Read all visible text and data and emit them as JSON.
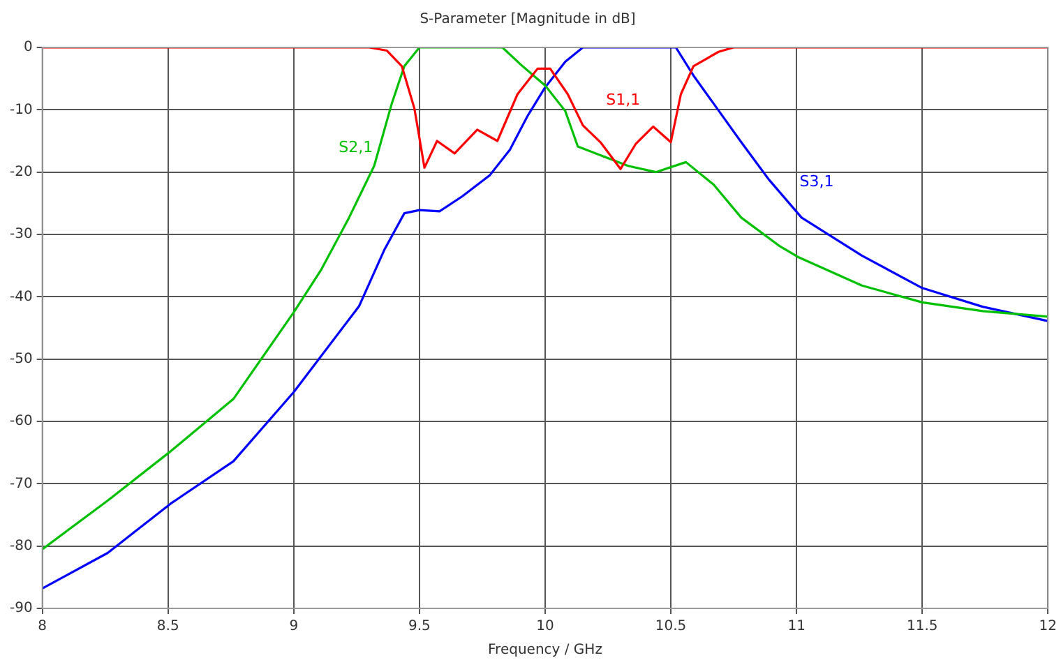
{
  "chart_data": {
    "type": "line",
    "title": "S-Parameter [Magnitude in dB]",
    "xlabel": "Frequency / GHz",
    "xlim": [
      8,
      12
    ],
    "xticks": [
      8,
      8.5,
      9,
      9.5,
      10,
      10.5,
      11,
      11.5,
      12
    ],
    "ylim": [
      -90,
      0
    ],
    "yticks": [
      -90,
      -80,
      -70,
      -60,
      -50,
      -40,
      -30,
      -20,
      -10,
      0
    ],
    "grid": true,
    "legend": false,
    "marker": "none",
    "line_style": "solid",
    "series": [
      {
        "name": "S1,1",
        "color": "#ff0000",
        "x": [
          8,
          9,
          9.3,
          9.37,
          9.43,
          9.48,
          9.52,
          9.57,
          9.64,
          9.73,
          9.81,
          9.89,
          9.97,
          10.02,
          10.09,
          10.15,
          10.22,
          10.3,
          10.36,
          10.43,
          10.5,
          10.54,
          10.59,
          10.69,
          10.75,
          11,
          12
        ],
        "values": [
          0,
          0,
          0,
          -0.5,
          -3,
          -9.8,
          -19.3,
          -15,
          -17,
          -13.2,
          -15,
          -7.5,
          -3.4,
          -3.4,
          -7.5,
          -12.5,
          -15.2,
          -19.5,
          -15.5,
          -12.7,
          -15.2,
          -7.5,
          -3,
          -0.7,
          0,
          0,
          0
        ]
      },
      {
        "name": "S2,1",
        "color": "#00c000",
        "x": [
          8,
          8.26,
          8.51,
          8.76,
          9,
          9.11,
          9.22,
          9.32,
          9.39,
          9.44,
          9.5,
          9.83,
          9.91,
          10,
          10.08,
          10.13,
          10.22,
          10.33,
          10.44,
          10.56,
          10.67,
          10.78,
          10.93,
          11.01,
          11.26,
          11.5,
          11.74,
          12
        ],
        "values": [
          -80.5,
          -72.7,
          -64.8,
          -56.4,
          -42.5,
          -35.6,
          -27.3,
          -19,
          -9,
          -3,
          0,
          0,
          -3,
          -6.1,
          -10.2,
          -15.9,
          -17.3,
          -19,
          -20,
          -18.4,
          -22,
          -27.3,
          -31.8,
          -33.7,
          -38.2,
          -40.9,
          -42.3,
          -43.2
        ]
      },
      {
        "name": "S3,1",
        "color": "#0000ff",
        "x": [
          8,
          8.26,
          8.51,
          8.76,
          9,
          9.26,
          9.36,
          9.44,
          9.5,
          9.58,
          9.67,
          9.78,
          9.86,
          9.93,
          10,
          10.08,
          10.15,
          10.52,
          10.59,
          10.67,
          10.78,
          10.89,
          11.02,
          11.26,
          11.5,
          11.74,
          12
        ],
        "values": [
          -86.8,
          -81.1,
          -73.2,
          -66.4,
          -55.3,
          -41.5,
          -32.5,
          -26.6,
          -26.1,
          -26.3,
          -23.9,
          -20.5,
          -16.4,
          -11,
          -6.4,
          -2.3,
          0,
          0,
          -4.5,
          -9,
          -15.2,
          -21.2,
          -27.3,
          -33.4,
          -38.6,
          -41.6,
          -43.9
        ]
      }
    ]
  }
}
